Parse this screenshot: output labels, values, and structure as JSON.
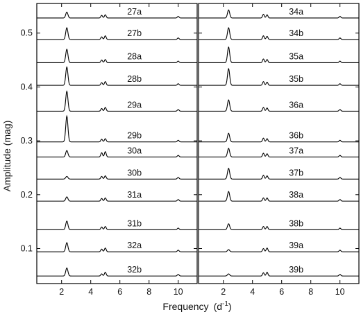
{
  "chart_data": {
    "type": "line",
    "xlabel": "Frequency",
    "xlabel_unit": "(d",
    "xlabel_unit_sup": "-1",
    "xlabel_unit_close": ")",
    "ylabel": "Amplitude  (mag)",
    "xlim": [
      0.3,
      11.3
    ],
    "ylim": [
      0.035,
      0.555
    ],
    "xticks": [
      2,
      4,
      6,
      8,
      10
    ],
    "yticks": [
      0.1,
      0.2,
      0.3,
      0.4,
      0.5
    ],
    "grid": false,
    "line_color": "#000000",
    "panels": [
      {
        "series": [
          {
            "name": "27a",
            "baseline": 0.528,
            "peaks": [
              [
                2.36,
                0.011
              ],
              [
                4.75,
                0.005
              ],
              [
                5.0,
                0.006
              ],
              [
                10.0,
                0.003
              ]
            ]
          },
          {
            "name": "27b",
            "baseline": 0.488,
            "peaks": [
              [
                2.36,
                0.022
              ],
              [
                4.75,
                0.005
              ],
              [
                5.0,
                0.007
              ],
              [
                10.0,
                0.003
              ]
            ]
          },
          {
            "name": "28a",
            "baseline": 0.445,
            "peaks": [
              [
                2.36,
                0.025
              ],
              [
                4.75,
                0.005
              ],
              [
                5.0,
                0.006
              ],
              [
                10.0,
                0.003
              ]
            ]
          },
          {
            "name": "28b",
            "baseline": 0.403,
            "peaks": [
              [
                2.36,
                0.034
              ],
              [
                4.75,
                0.005
              ],
              [
                5.0,
                0.007
              ],
              [
                10.0,
                0.003
              ]
            ]
          },
          {
            "name": "29a",
            "baseline": 0.355,
            "peaks": [
              [
                2.36,
                0.037
              ],
              [
                4.75,
                0.005
              ],
              [
                5.0,
                0.007
              ],
              [
                10.0,
                0.003
              ]
            ]
          },
          {
            "name": "29b",
            "baseline": 0.298,
            "peaks": [
              [
                2.36,
                0.048
              ],
              [
                4.75,
                0.005
              ],
              [
                5.0,
                0.006
              ],
              [
                10.0,
                0.003
              ]
            ]
          },
          {
            "name": "30a",
            "baseline": 0.27,
            "peaks": [
              [
                2.36,
                0.012
              ],
              [
                4.75,
                0.008
              ],
              [
                5.0,
                0.01
              ],
              [
                10.0,
                0.003
              ]
            ]
          },
          {
            "name": "30b",
            "baseline": 0.229,
            "peaks": [
              [
                2.36,
                0.005
              ],
              [
                4.75,
                0.005
              ],
              [
                5.0,
                0.006
              ],
              [
                10.0,
                0.003
              ]
            ]
          },
          {
            "name": "31a",
            "baseline": 0.188,
            "peaks": [
              [
                2.36,
                0.008
              ],
              [
                4.75,
                0.005
              ],
              [
                5.0,
                0.006
              ],
              [
                10.0,
                0.003
              ]
            ]
          },
          {
            "name": "31b",
            "baseline": 0.135,
            "peaks": [
              [
                2.36,
                0.016
              ],
              [
                4.75,
                0.005
              ],
              [
                5.0,
                0.006
              ],
              [
                10.0,
                0.003
              ]
            ]
          },
          {
            "name": "32a",
            "baseline": 0.094,
            "peaks": [
              [
                2.36,
                0.017
              ],
              [
                4.75,
                0.005
              ],
              [
                5.0,
                0.007
              ],
              [
                10.0,
                0.003
              ]
            ]
          },
          {
            "name": "32b",
            "baseline": 0.049,
            "peaks": [
              [
                2.36,
                0.015
              ],
              [
                4.75,
                0.004
              ],
              [
                5.0,
                0.007
              ],
              [
                10.0,
                0.003
              ]
            ]
          }
        ]
      },
      {
        "series": [
          {
            "name": "34a",
            "baseline": 0.528,
            "peaks": [
              [
                2.36,
                0.015
              ],
              [
                4.75,
                0.007
              ],
              [
                5.0,
                0.006
              ],
              [
                10.0,
                0.003
              ]
            ]
          },
          {
            "name": "34b",
            "baseline": 0.488,
            "peaks": [
              [
                2.36,
                0.022
              ],
              [
                4.75,
                0.007
              ],
              [
                5.0,
                0.006
              ],
              [
                10.0,
                0.003
              ]
            ]
          },
          {
            "name": "35a",
            "baseline": 0.445,
            "peaks": [
              [
                2.36,
                0.029
              ],
              [
                4.75,
                0.007
              ],
              [
                5.0,
                0.006
              ],
              [
                10.0,
                0.003
              ]
            ]
          },
          {
            "name": "35b",
            "baseline": 0.403,
            "peaks": [
              [
                2.36,
                0.031
              ],
              [
                4.75,
                0.007
              ],
              [
                5.0,
                0.006
              ],
              [
                10.0,
                0.003
              ]
            ]
          },
          {
            "name": "36a",
            "baseline": 0.355,
            "peaks": [
              [
                2.36,
                0.021
              ],
              [
                4.75,
                0.007
              ],
              [
                5.0,
                0.006
              ],
              [
                10.0,
                0.003
              ]
            ]
          },
          {
            "name": "36b",
            "baseline": 0.298,
            "peaks": [
              [
                2.36,
                0.016
              ],
              [
                4.75,
                0.007
              ],
              [
                5.0,
                0.006
              ],
              [
                10.0,
                0.003
              ]
            ]
          },
          {
            "name": "37a",
            "baseline": 0.27,
            "peaks": [
              [
                2.36,
                0.016
              ],
              [
                4.75,
                0.007
              ],
              [
                5.0,
                0.006
              ],
              [
                10.0,
                0.003
              ]
            ]
          },
          {
            "name": "37b",
            "baseline": 0.229,
            "peaks": [
              [
                2.36,
                0.02
              ],
              [
                4.75,
                0.007
              ],
              [
                5.0,
                0.006
              ],
              [
                10.0,
                0.003
              ]
            ]
          },
          {
            "name": "38a",
            "baseline": 0.188,
            "peaks": [
              [
                2.36,
                0.018
              ],
              [
                4.75,
                0.006
              ],
              [
                5.0,
                0.006
              ],
              [
                10.0,
                0.003
              ]
            ]
          },
          {
            "name": "38b",
            "baseline": 0.135,
            "peaks": [
              [
                2.36,
                0.011
              ],
              [
                4.75,
                0.006
              ],
              [
                5.0,
                0.006
              ],
              [
                10.0,
                0.003
              ]
            ]
          },
          {
            "name": "39a",
            "baseline": 0.094,
            "peaks": [
              [
                2.36,
                0.004
              ],
              [
                4.75,
                0.006
              ],
              [
                5.0,
                0.007
              ],
              [
                10.0,
                0.003
              ]
            ]
          },
          {
            "name": "39b",
            "baseline": 0.049,
            "peaks": [
              [
                2.36,
                0.004
              ],
              [
                4.75,
                0.006
              ],
              [
                5.0,
                0.007
              ],
              [
                10.0,
                0.003
              ]
            ]
          }
        ]
      }
    ]
  }
}
